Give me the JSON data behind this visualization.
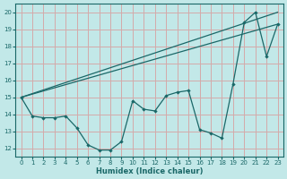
{
  "xlabel": "Humidex (Indice chaleur)",
  "bg_color": "#c2e8e8",
  "grid_color": "#d4aaaa",
  "line_color": "#1a6868",
  "xlim": [
    -0.5,
    23.5
  ],
  "ylim": [
    11.5,
    20.5
  ],
  "yticks": [
    12,
    13,
    14,
    15,
    16,
    17,
    18,
    19,
    20
  ],
  "xticks": [
    0,
    1,
    2,
    3,
    4,
    5,
    6,
    7,
    8,
    9,
    10,
    11,
    12,
    13,
    14,
    15,
    16,
    17,
    18,
    19,
    20,
    21,
    22,
    23
  ],
  "trend1_x": [
    0,
    23
  ],
  "trend1_y": [
    15.0,
    20.0
  ],
  "trend2_x": [
    0,
    23
  ],
  "trend2_y": [
    15.0,
    19.3
  ],
  "series_x": [
    0,
    1,
    2,
    3,
    4,
    5,
    6,
    7,
    8,
    9,
    10,
    11,
    12,
    13,
    14,
    15,
    16,
    17,
    18,
    19,
    20,
    21,
    22,
    23
  ],
  "series_y": [
    15.0,
    13.9,
    13.8,
    13.8,
    13.9,
    13.2,
    12.2,
    11.9,
    11.9,
    12.4,
    14.8,
    14.3,
    14.2,
    15.1,
    15.3,
    15.4,
    13.1,
    12.9,
    12.6,
    15.8,
    19.4,
    20.0,
    17.4,
    19.3
  ]
}
